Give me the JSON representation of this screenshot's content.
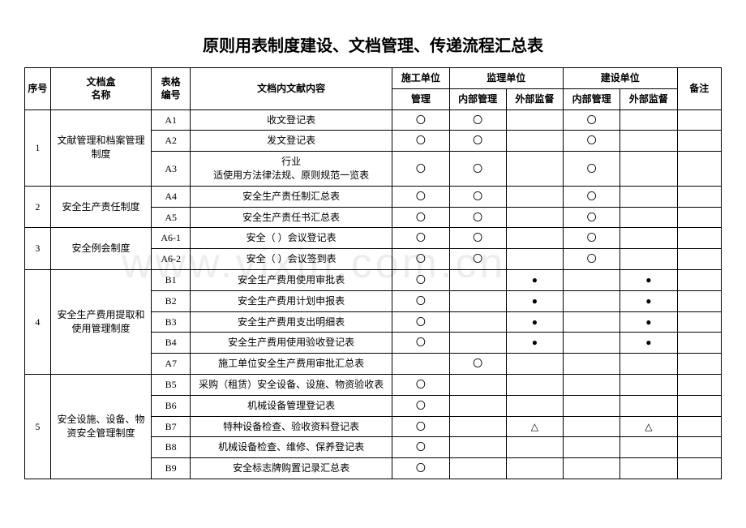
{
  "title": "原则用表制度建设、文档管理、传递流程汇总表",
  "watermark": "www.yixin.com.cn",
  "headers": {
    "seq": "序号",
    "box": "文档盒\n名称",
    "form": "表格\n编号",
    "content": "文档内文献内容",
    "constr": "施工单位",
    "supv": "监理单位",
    "build": "建设单位",
    "remark": "备注",
    "manage": "管理",
    "innerManage": "内部管理",
    "outerSup": "外部监督"
  },
  "marks": {
    "circle": "〇",
    "filled": "●",
    "triangle": "△",
    "blank": ""
  },
  "groups": [
    {
      "seq": "1",
      "box": "文献管理和档案管理制度",
      "rows": [
        {
          "form": "A1",
          "content": "收文登记表",
          "cells": [
            "circle",
            "circle",
            "blank",
            "circle",
            "blank"
          ]
        },
        {
          "form": "A2",
          "content": "发文登记表",
          "cells": [
            "circle",
            "circle",
            "blank",
            "circle",
            "blank"
          ]
        },
        {
          "form": "A3",
          "content": "行业\n适使用方法律法规、原则规范一览表",
          "cells": [
            "circle",
            "circle",
            "blank",
            "circle",
            "blank"
          ]
        }
      ]
    },
    {
      "seq": "2",
      "box": "安全生产责任制度",
      "rows": [
        {
          "form": "A4",
          "content": "安全生产责任制汇总表",
          "cells": [
            "circle",
            "circle",
            "blank",
            "circle",
            "blank"
          ]
        },
        {
          "form": "A5",
          "content": "安全生产责任书汇总表",
          "cells": [
            "circle",
            "circle",
            "blank",
            "circle",
            "blank"
          ]
        }
      ]
    },
    {
      "seq": "3",
      "box": "安全例会制度",
      "rows": [
        {
          "form": "A6-1",
          "content": "安全（ ）会议登记表",
          "cells": [
            "circle",
            "circle",
            "blank",
            "circle",
            "blank"
          ]
        },
        {
          "form": "A6-2",
          "content": "安全（ ）会议签到表",
          "cells": [
            "circle",
            "circle",
            "blank",
            "circle",
            "blank"
          ]
        }
      ]
    },
    {
      "seq": "4",
      "box": "安全生产费用提取和\n使用管理制度",
      "rows": [
        {
          "form": "B1",
          "content": "安全生产费用使用审批表",
          "cells": [
            "circle",
            "blank",
            "filled",
            "blank",
            "filled"
          ]
        },
        {
          "form": "B2",
          "content": "安全生产费用计划申报表",
          "cells": [
            "circle",
            "blank",
            "filled",
            "blank",
            "filled"
          ]
        },
        {
          "form": "B3",
          "content": "安全生产费用支出明细表",
          "cells": [
            "circle",
            "blank",
            "filled",
            "blank",
            "filled"
          ]
        },
        {
          "form": "B4",
          "content": "安全生产费用使用验收登记表",
          "cells": [
            "circle",
            "blank",
            "filled",
            "blank",
            "filled"
          ]
        },
        {
          "form": "A7",
          "content": "施工单位安全生产费用审批汇总表",
          "cells": [
            "blank",
            "circle",
            "blank",
            "blank",
            "blank"
          ]
        }
      ]
    },
    {
      "seq": "5",
      "box": "安全设施、设备、物资安全管理制度",
      "rows": [
        {
          "form": "B5",
          "content": "采购（租赁）安全设备、设施、物资验收表",
          "cells": [
            "circle",
            "blank",
            "blank",
            "blank",
            "blank"
          ]
        },
        {
          "form": "B6",
          "content": "机械设备管理登记表",
          "cells": [
            "circle",
            "blank",
            "blank",
            "blank",
            "blank"
          ]
        },
        {
          "form": "B7",
          "content": "特种设备检查、验收资料登记表",
          "cells": [
            "circle",
            "blank",
            "triangle",
            "blank",
            "triangle"
          ]
        },
        {
          "form": "B8",
          "content": "机械设备检查、维修、保养登记表",
          "cells": [
            "circle",
            "blank",
            "blank",
            "blank",
            "blank"
          ]
        },
        {
          "form": "B9",
          "content": "安全标志牌购置记录汇总表",
          "cells": [
            "circle",
            "blank",
            "blank",
            "blank",
            "blank"
          ]
        }
      ]
    }
  ]
}
